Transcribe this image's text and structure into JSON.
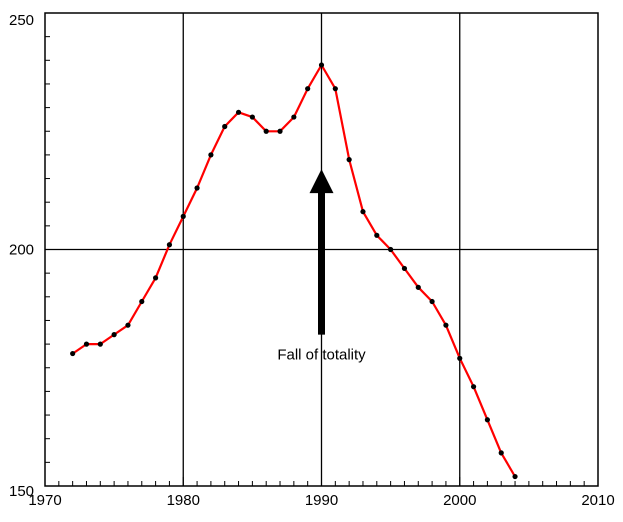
{
  "chart_data": {
    "type": "line",
    "title": "",
    "xlabel": "",
    "ylabel": "",
    "xlim": [
      1970,
      2010
    ],
    "ylim": [
      150,
      250
    ],
    "x_ticks": [
      "1970",
      "1980",
      "1990",
      "2000",
      "2010"
    ],
    "y_ticks": [
      "150",
      "200",
      "250"
    ],
    "grid": true,
    "series": [
      {
        "color": "#ff0000",
        "marker_color": "#000000",
        "points": [
          [
            1972,
            178
          ],
          [
            1973,
            180
          ],
          [
            1974,
            180
          ],
          [
            1975,
            182
          ],
          [
            1976,
            184
          ],
          [
            1977,
            189
          ],
          [
            1978,
            194
          ],
          [
            1979,
            201
          ],
          [
            1980,
            207
          ],
          [
            1981,
            213
          ],
          [
            1982,
            220
          ],
          [
            1983,
            226
          ],
          [
            1984,
            229
          ],
          [
            1985,
            228
          ],
          [
            1986,
            225
          ],
          [
            1987,
            225
          ],
          [
            1988,
            228
          ],
          [
            1989,
            234
          ],
          [
            1990,
            239
          ],
          [
            1991,
            234
          ],
          [
            1992,
            219
          ],
          [
            1993,
            208
          ],
          [
            1994,
            203
          ],
          [
            1995,
            200
          ],
          [
            1996,
            196
          ],
          [
            1997,
            192
          ],
          [
            1998,
            189
          ],
          [
            1999,
            184
          ],
          [
            2000,
            177
          ],
          [
            2001,
            171
          ],
          [
            2002,
            164
          ],
          [
            2003,
            157
          ],
          [
            2004,
            152
          ]
        ]
      }
    ],
    "annotations": [
      {
        "text": "Fall of totality",
        "arrow_x": 1990,
        "arrow_from_y": 182,
        "arrow_to_y": 217
      }
    ]
  }
}
